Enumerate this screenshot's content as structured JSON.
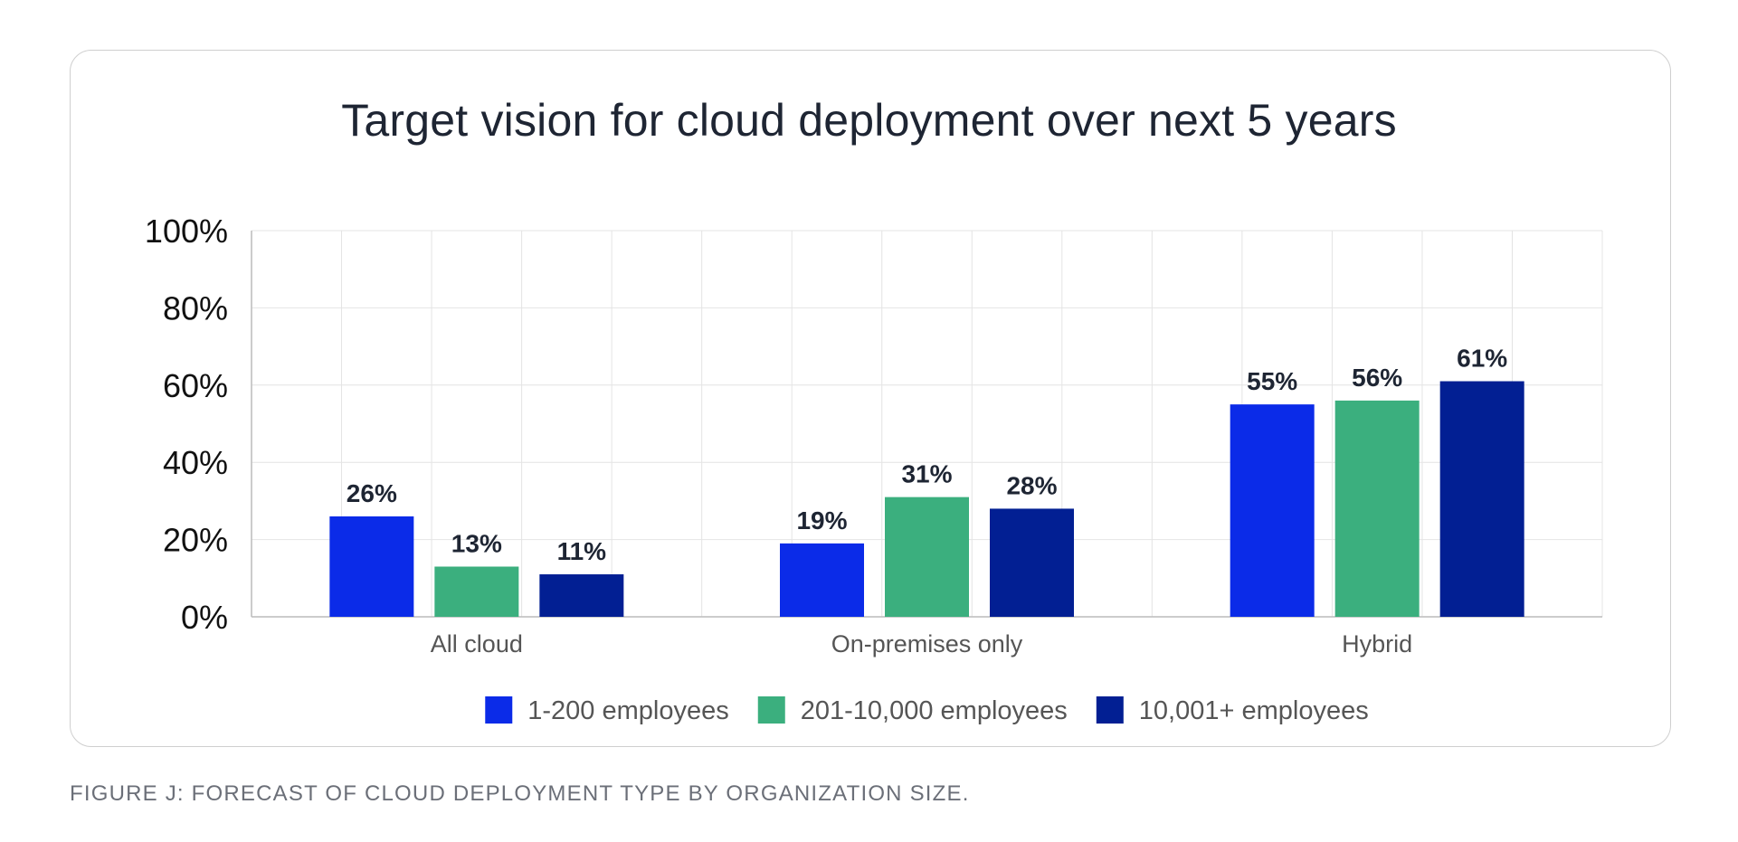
{
  "caption": "FIGURE J: FORECAST OF CLOUD DEPLOYMENT TYPE BY ORGANIZATION SIZE.",
  "colors": {
    "series1": "#0b2be8",
    "series2": "#3baf7e",
    "series3": "#021f93"
  },
  "chart_data": {
    "type": "bar",
    "title": "Target vision for cloud deployment over next 5 years",
    "xlabel": "",
    "ylabel": "",
    "ylim": [
      0,
      100
    ],
    "y_ticks": [
      "0%",
      "20%",
      "40%",
      "60%",
      "80%",
      "100%"
    ],
    "y_tick_values": [
      0,
      20,
      40,
      60,
      80,
      100
    ],
    "grid": true,
    "legend_position": "bottom",
    "categories": [
      "All cloud",
      "On-premises only",
      "Hybrid"
    ],
    "series": [
      {
        "name": "1-200 employees",
        "values": [
          26,
          19,
          55
        ],
        "labels": [
          "26%",
          "19%",
          "55%"
        ]
      },
      {
        "name": "201-10,000 employees",
        "values": [
          13,
          31,
          56
        ],
        "labels": [
          "13%",
          "31%",
          "56%"
        ]
      },
      {
        "name": "10,001+ employees",
        "values": [
          11,
          28,
          61
        ],
        "labels": [
          "11%",
          "28%",
          "61%"
        ]
      }
    ]
  }
}
